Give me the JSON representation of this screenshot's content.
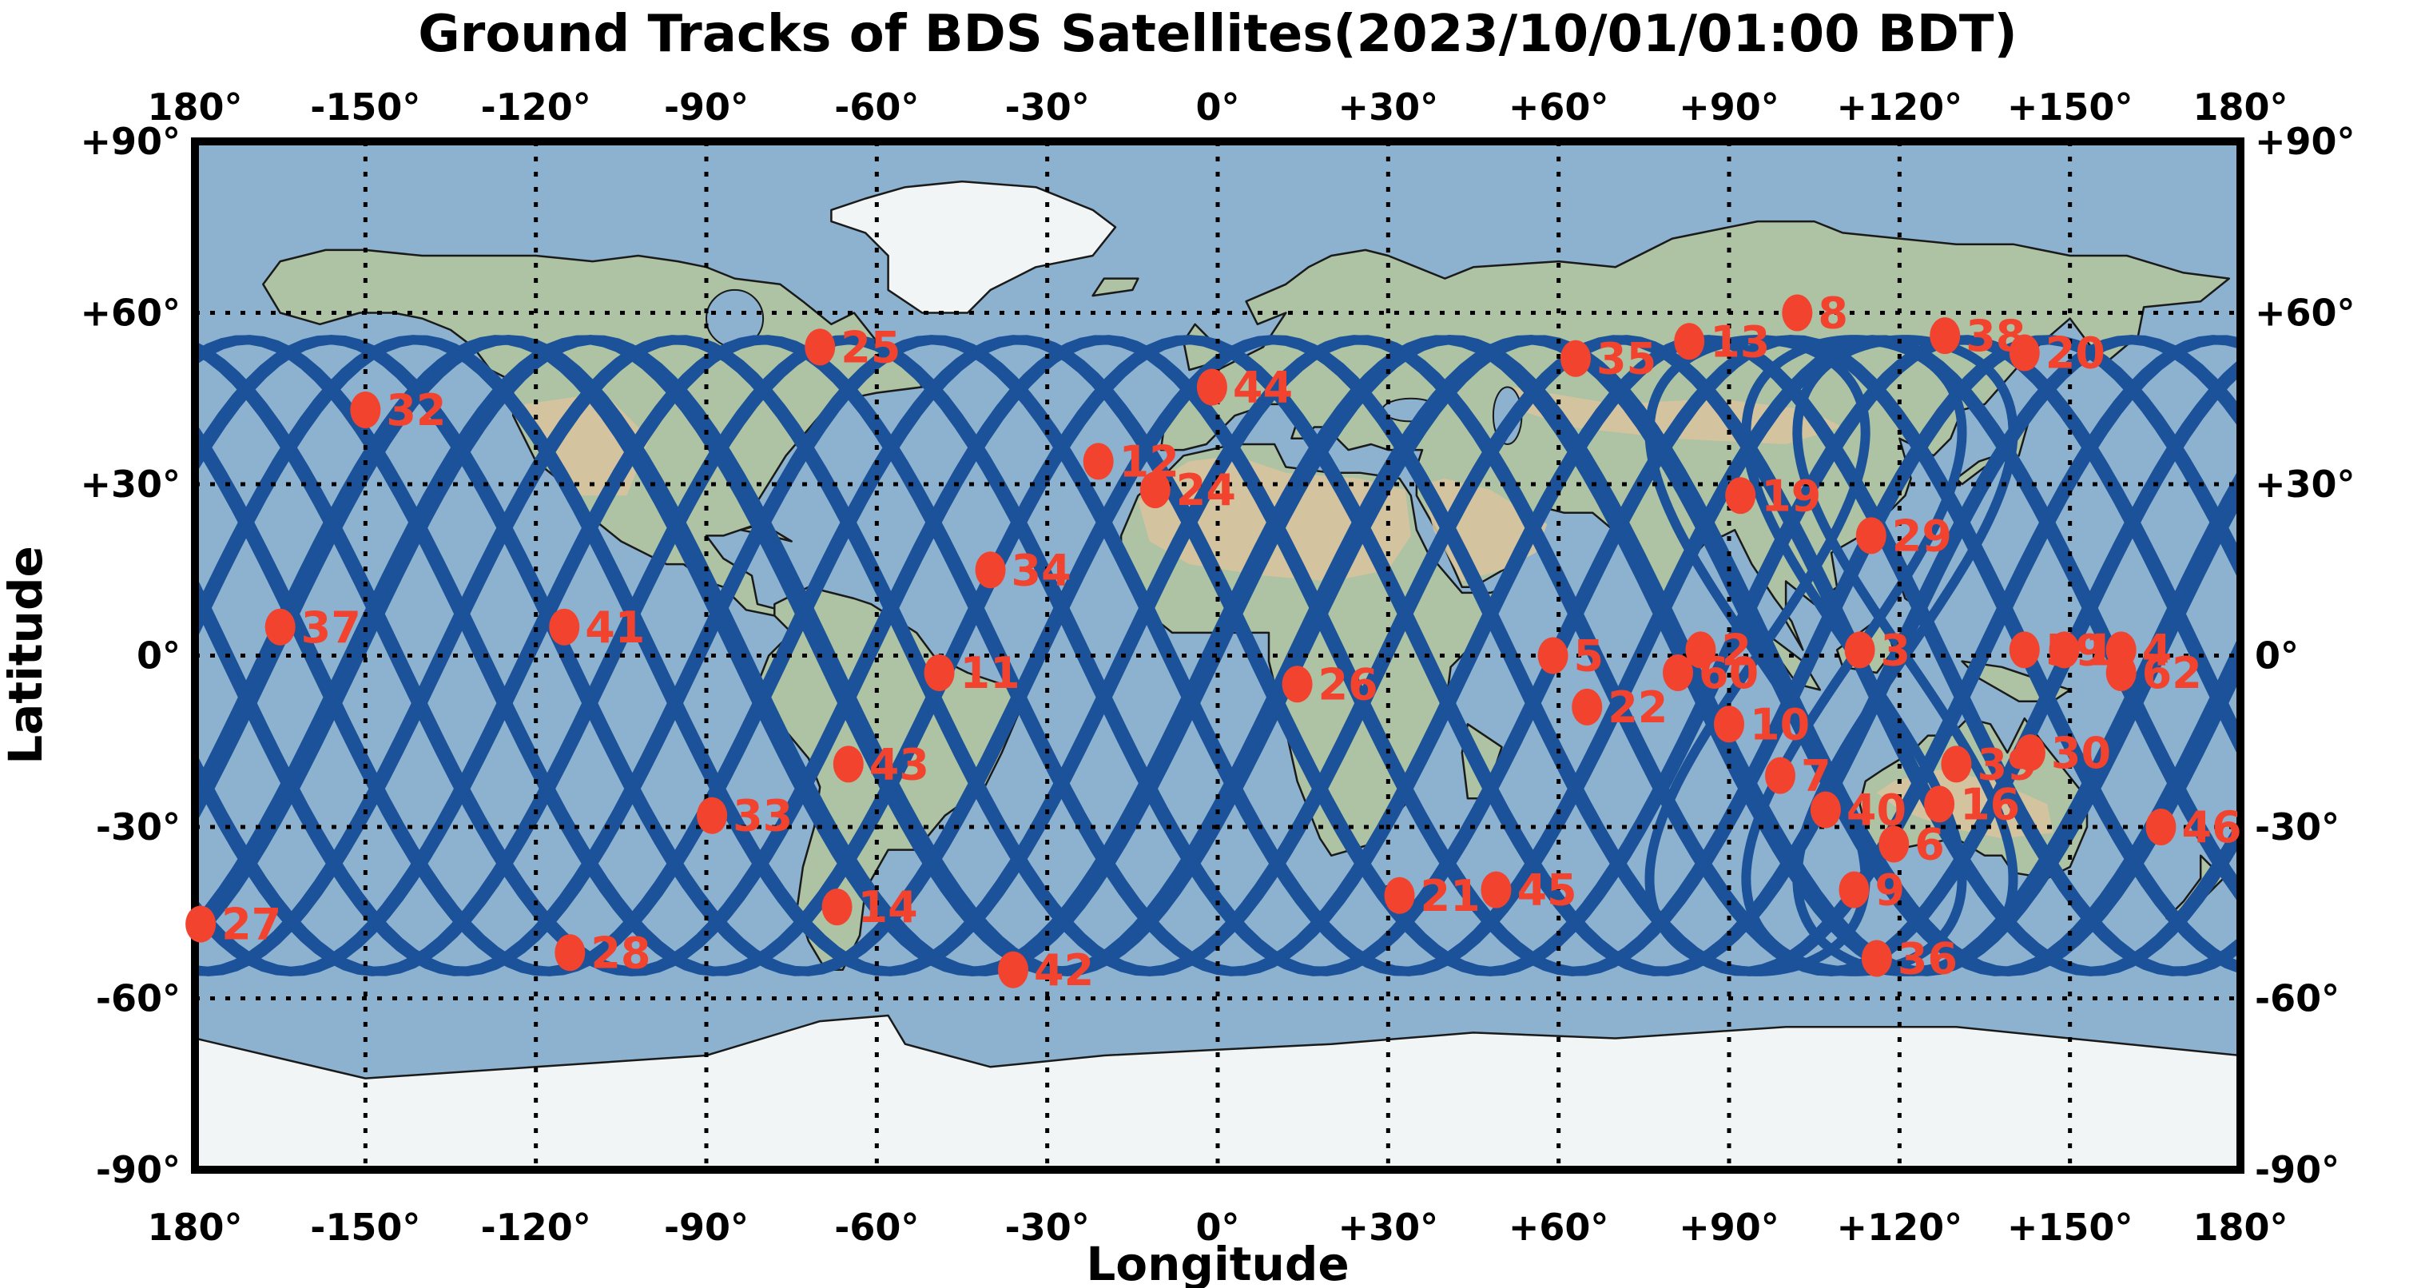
{
  "title": "Ground Tracks of BDS Satellites(2023/10/01/01:00 BDT)",
  "axes": {
    "xlabel": "Longitude",
    "ylabel": "Latitude",
    "x_tick_labels": [
      "180°",
      "-150°",
      "-120°",
      "-90°",
      "-60°",
      "-30°",
      "0°",
      "+30°",
      "+60°",
      "+90°",
      "+120°",
      "+150°",
      "180°"
    ],
    "x_tick_lons": [
      -180,
      -150,
      -120,
      -90,
      -60,
      -30,
      0,
      30,
      60,
      90,
      120,
      150,
      180
    ],
    "y_tick_labels": [
      "+90°",
      "+60°",
      "+30°",
      "0°",
      "-30°",
      "-60°",
      "-90°"
    ],
    "y_tick_lats": [
      90,
      60,
      30,
      0,
      -30,
      -60,
      -90
    ],
    "lon_range": [
      -180,
      180
    ],
    "lat_range": [
      -90,
      90
    ],
    "grid": "dotted, every 30 degrees, both axes, top/bottom and left/right tick labels"
  },
  "colors": {
    "track_blue": "#1b5299",
    "marker_red": "#f2432f",
    "ocean": "#8db2cf",
    "land": "#aec2a4",
    "desert": "#d7c49e",
    "ice": "#f2f5f6",
    "grid_black": "#000000"
  },
  "chart_data": {
    "type": "scatter",
    "title": "Ground Tracks of BDS Satellites(2023/10/01/01:00 BDT)",
    "xlabel": "Longitude",
    "ylabel": "Latitude",
    "xlim": [
      -180,
      180
    ],
    "ylim": [
      -90,
      90
    ],
    "grid": true,
    "background": "natural-earth world map, equirectangular projection",
    "tracks_style": "dark blue ground-track curves, MEO sinusoids amplitude ±55° plus IGSO figure-eights near 95–120°E",
    "ground_tracks": {
      "meo_amplitude_deg": 55.3,
      "meo_wavelength_deg": 166,
      "meo_phase_step_deg": 15,
      "meo_curve_count": 24,
      "igso_center_lons": [
        95,
        112,
        121
      ],
      "igso_lon_half_width_deg": 19
    },
    "satellites": [
      {
        "id": "1",
        "lon": 149,
        "lat": 1
      },
      {
        "id": "2",
        "lon": 85,
        "lat": 1
      },
      {
        "id": "3",
        "lon": 113,
        "lat": 1
      },
      {
        "id": "4",
        "lon": 159,
        "lat": 1
      },
      {
        "id": "5",
        "lon": 59,
        "lat": 0
      },
      {
        "id": "6",
        "lon": 119,
        "lat": -33
      },
      {
        "id": "7",
        "lon": 99,
        "lat": -21
      },
      {
        "id": "8",
        "lon": 102,
        "lat": 60
      },
      {
        "id": "9",
        "lon": 112,
        "lat": -41
      },
      {
        "id": "10",
        "lon": 90,
        "lat": -12
      },
      {
        "id": "11",
        "lon": -49,
        "lat": -3
      },
      {
        "id": "12",
        "lon": -21,
        "lat": 34
      },
      {
        "id": "13",
        "lon": 83,
        "lat": 55
      },
      {
        "id": "14",
        "lon": -67,
        "lat": -44
      },
      {
        "id": "16",
        "lon": 127,
        "lat": -26
      },
      {
        "id": "19",
        "lon": 92,
        "lat": 28
      },
      {
        "id": "20",
        "lon": 142,
        "lat": 53
      },
      {
        "id": "21",
        "lon": 32,
        "lat": -42
      },
      {
        "id": "22",
        "lon": 65,
        "lat": -9
      },
      {
        "id": "24",
        "lon": -11,
        "lat": 29
      },
      {
        "id": "25",
        "lon": -70,
        "lat": 54
      },
      {
        "id": "26",
        "lon": 14,
        "lat": -5
      },
      {
        "id": "27",
        "lon": -179,
        "lat": -47
      },
      {
        "id": "28",
        "lon": -114,
        "lat": -52
      },
      {
        "id": "29",
        "lon": 115,
        "lat": 21
      },
      {
        "id": "30",
        "lon": 143,
        "lat": -17
      },
      {
        "id": "32",
        "lon": -150,
        "lat": 43
      },
      {
        "id": "33",
        "lon": -89,
        "lat": -28
      },
      {
        "id": "34",
        "lon": -40,
        "lat": 15
      },
      {
        "id": "35",
        "lon": 63,
        "lat": 52
      },
      {
        "id": "36",
        "lon": 116,
        "lat": -53
      },
      {
        "id": "37",
        "lon": -165,
        "lat": 5
      },
      {
        "id": "38",
        "lon": 128,
        "lat": 56
      },
      {
        "id": "39",
        "lon": 130,
        "lat": -19
      },
      {
        "id": "40",
        "lon": 107,
        "lat": -27
      },
      {
        "id": "41",
        "lon": -115,
        "lat": 5
      },
      {
        "id": "42",
        "lon": -36,
        "lat": -55
      },
      {
        "id": "43",
        "lon": -65,
        "lat": -19
      },
      {
        "id": "44",
        "lon": -1,
        "lat": 47
      },
      {
        "id": "45",
        "lon": 49,
        "lat": -41
      },
      {
        "id": "46",
        "lon": 166,
        "lat": -30
      },
      {
        "id": "59",
        "lon": 142,
        "lat": 1
      },
      {
        "id": "60",
        "lon": 81,
        "lat": -3
      },
      {
        "id": "62",
        "lon": 159,
        "lat": -3
      }
    ]
  }
}
